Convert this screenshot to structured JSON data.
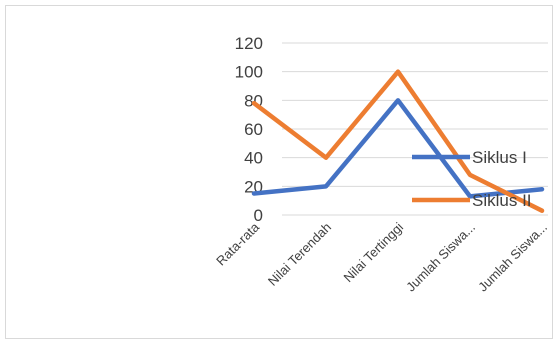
{
  "chart_data": {
    "type": "line",
    "categories": [
      "Rata-rata",
      "Nilai Terendah",
      "Nilai Tertinggi",
      "Jumlah Siswa...",
      "Jumlah Siswa..."
    ],
    "series": [
      {
        "name": "Siklus I",
        "color": "#4472c4",
        "values": [
          15,
          20,
          80,
          13,
          18
        ]
      },
      {
        "name": "Siklus II",
        "color": "#ed7d31",
        "values": [
          78,
          40,
          100,
          28,
          3
        ]
      }
    ],
    "ylim": [
      0,
      120
    ],
    "yticks": [
      0,
      20,
      40,
      60,
      80,
      100,
      120
    ],
    "grid": true,
    "legend": "right"
  }
}
